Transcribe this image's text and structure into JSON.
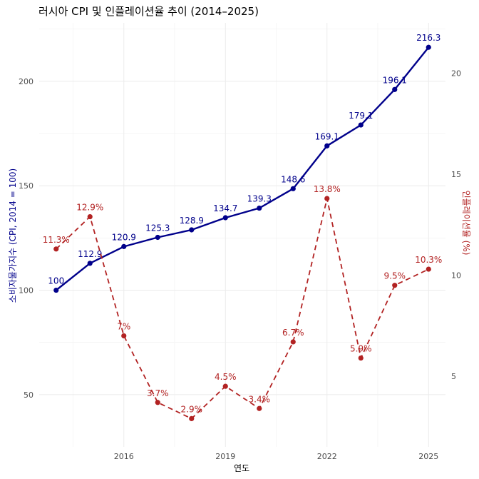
{
  "chart_data": {
    "type": "line",
    "title": "러시아 CPI 및 인플레이션율 추이 (2014–2025)",
    "xlabel": "연도",
    "ylabel_left": "소비자물가지수 (CPI, 2014 = 100)",
    "ylabel_right": "인플레이션율 (%)",
    "x": [
      2014,
      2015,
      2016,
      2017,
      2018,
      2019,
      2020,
      2021,
      2022,
      2023,
      2024,
      2025
    ],
    "x_ticks": [
      2016,
      2019,
      2022,
      2025
    ],
    "xlim": [
      2013.5,
      2025.5
    ],
    "ylim_left": [
      25,
      228
    ],
    "yticks_left": [
      50,
      100,
      150,
      200
    ],
    "ylim_right": [
      1.5,
      22.5
    ],
    "yticks_right": [
      5,
      10,
      15,
      20
    ],
    "grid": true,
    "series": [
      {
        "name": "CPI",
        "axis": "left",
        "style": "solid",
        "color": "#00008b",
        "values": [
          100,
          112.9,
          120.9,
          125.3,
          128.9,
          134.7,
          139.3,
          148.6,
          169.1,
          179.1,
          196.1,
          216.3
        ],
        "labels": [
          "100",
          "112.9",
          "120.9",
          "125.3",
          "128.9",
          "134.7",
          "139.3",
          "148.6",
          "169.1",
          "179.1",
          "196.1",
          "216.3"
        ]
      },
      {
        "name": "Inflation",
        "axis": "right",
        "style": "dashed",
        "color": "#b22222",
        "values": [
          11.3,
          12.9,
          7.0,
          3.7,
          2.9,
          4.5,
          3.4,
          6.7,
          13.8,
          5.9,
          9.5,
          10.3
        ],
        "labels": [
          "11.3%",
          "12.9%",
          "7%",
          "3.7%",
          "2.9%",
          "4.5%",
          "3.4%",
          "6.7%",
          "13.8%",
          "5.9%",
          "9.5%",
          "10.3%"
        ]
      }
    ]
  }
}
